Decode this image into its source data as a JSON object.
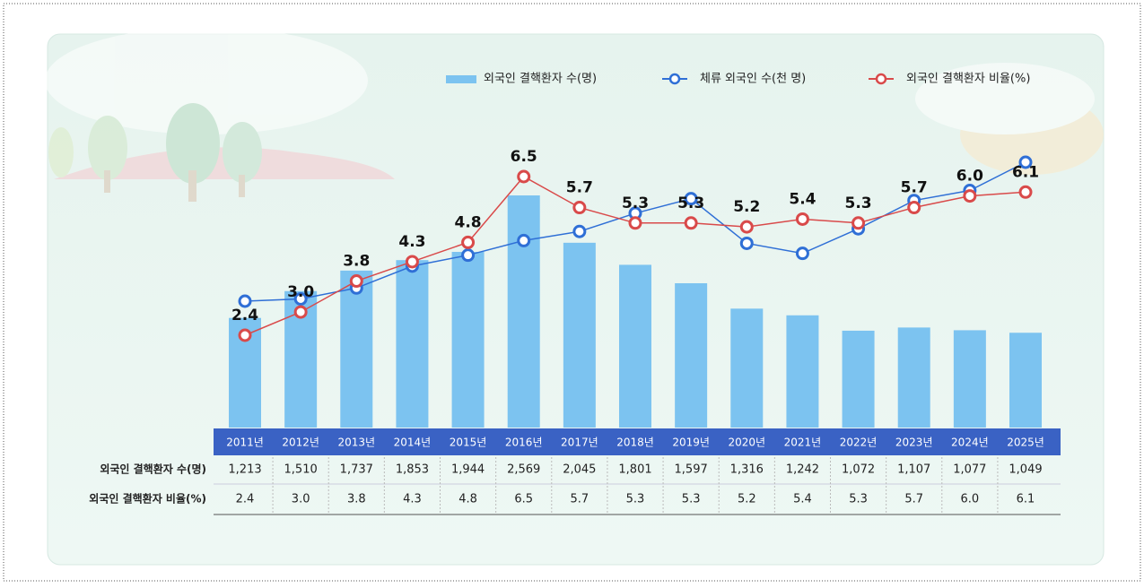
{
  "chart_data": {
    "type": "combo",
    "categories": [
      "2011년",
      "2012년",
      "2013년",
      "2014년",
      "2015년",
      "2016년",
      "2017년",
      "2018년",
      "2019년",
      "2020년",
      "2021년",
      "2022년",
      "2023년",
      "2024년",
      "2025년"
    ],
    "series": [
      {
        "name": "외국인 결핵환자 수(명)",
        "type": "bar",
        "color": "#7cc3f0",
        "values": [
          1213,
          1510,
          1737,
          1853,
          1944,
          2569,
          2045,
          1801,
          1597,
          1316,
          1242,
          1072,
          1107,
          1077,
          1049
        ],
        "value_labels": [
          "1,213",
          "1,510",
          "1,737",
          "1,853",
          "1,944",
          "2,569",
          "2,045",
          "1,801",
          "1,597",
          "1,316",
          "1,242",
          "1,072",
          "1,107",
          "1,077",
          "1,049"
        ]
      },
      {
        "name": "체류 외국인 수(천 명)",
        "type": "line",
        "color": "#2f6fd6",
        "values": [
          1395,
          1420,
          1540,
          1780,
          1900,
          2060,
          2160,
          2360,
          2520,
          2030,
          1920,
          2190,
          2500,
          2610,
          2920
        ]
      },
      {
        "name": "외국인 결핵환자 비율(%)",
        "type": "line",
        "color": "#d94a4a",
        "values": [
          2.4,
          3.0,
          3.8,
          4.3,
          4.8,
          6.5,
          5.7,
          5.3,
          5.3,
          5.2,
          5.4,
          5.3,
          5.7,
          6.0,
          6.1
        ],
        "value_labels": [
          "2.4",
          "3.0",
          "3.8",
          "4.3",
          "4.8",
          "6.5",
          "5.7",
          "5.3",
          "5.3",
          "5.2",
          "5.4",
          "5.3",
          "5.7",
          "6.0",
          "6.1"
        ]
      }
    ]
  }
}
